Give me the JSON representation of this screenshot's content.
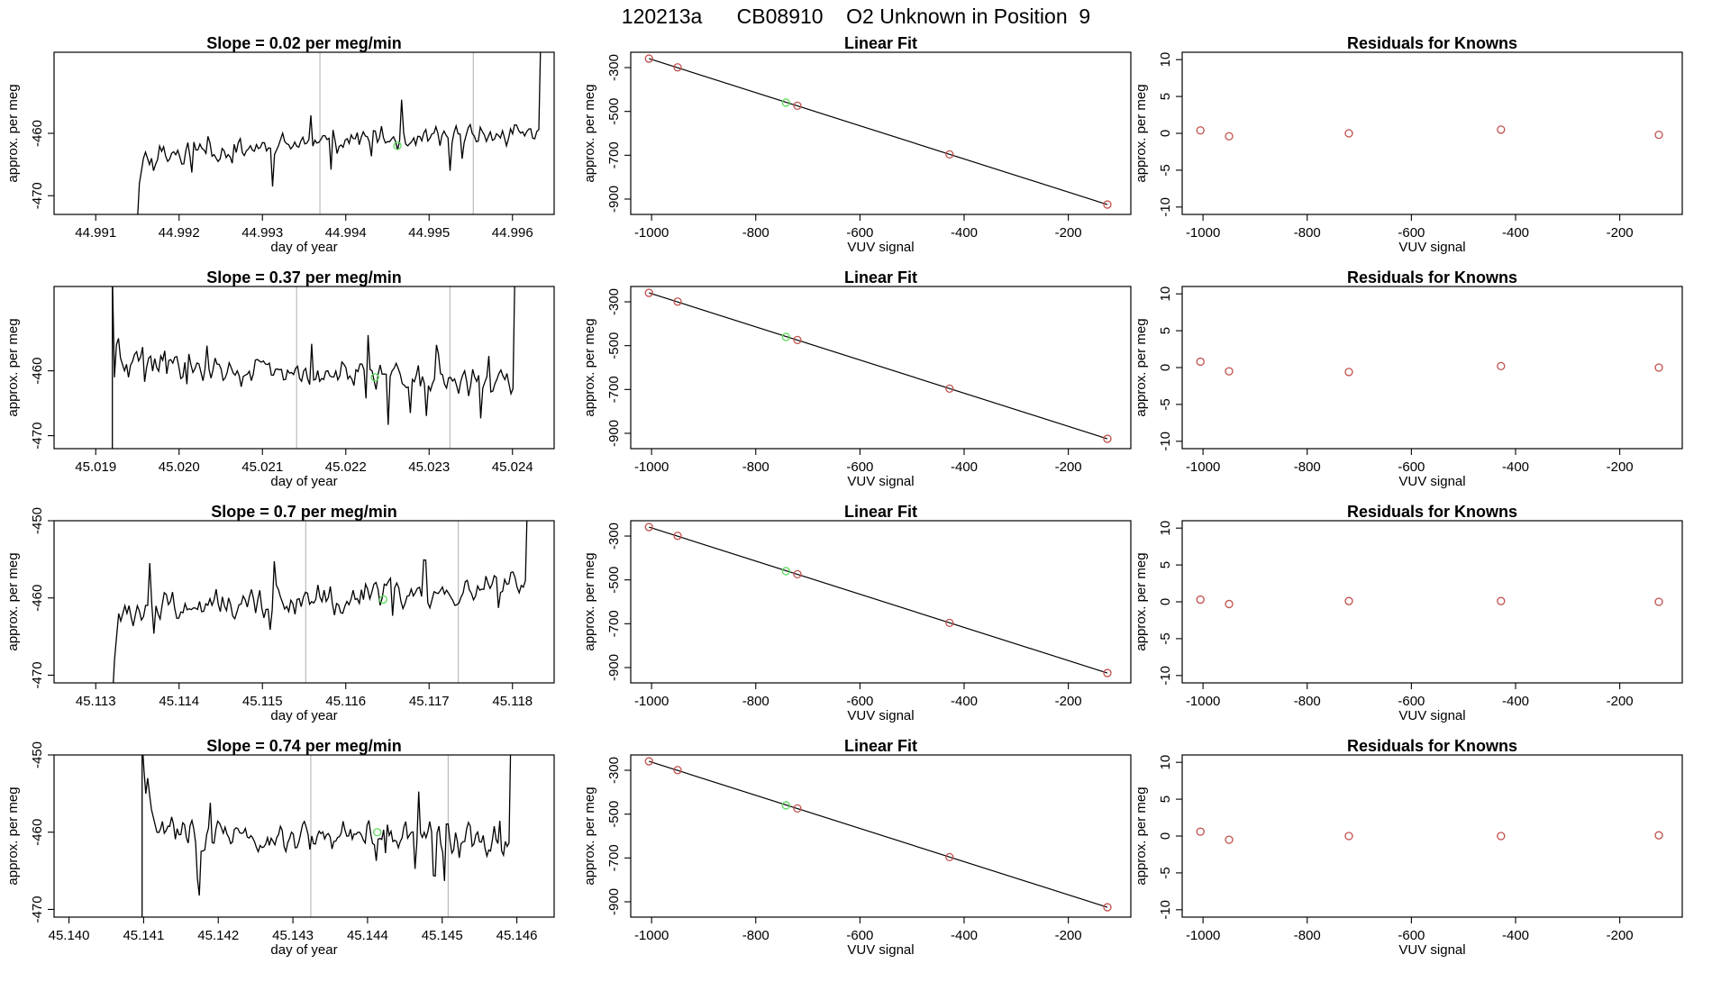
{
  "figure_title": "120213a      CB08910    O2 Unknown in Position  9",
  "colors": {
    "line": "#000000",
    "known_point": "#c0504d",
    "unknown_point": "#5cdc5c",
    "marker_line": "#bbbbbb"
  },
  "chart_data": [
    {
      "type": "line",
      "title": "Slope =  0.02  per meg/min",
      "xlabel": "day of year",
      "ylabel": "approx. per meg",
      "xlim": [
        44.9905,
        44.9965
      ],
      "ylim": [
        -473,
        -447
      ],
      "x_ticks": [
        44.991,
        44.992,
        44.993,
        44.994,
        44.995,
        44.996
      ],
      "x_tick_labels": [
        "44.991",
        "44.992",
        "44.993",
        "44.994",
        "44.995",
        "44.996"
      ],
      "y_ticks": [
        -470,
        -460
      ],
      "y_tick_labels": [
        "-470",
        "-460"
      ],
      "start": 44.9915,
      "end": 44.99634,
      "markers": [
        44.99369,
        44.99553
      ],
      "unknown_point": {
        "x": 44.99462,
        "y": -462.0
      },
      "trace": [
        -474,
        -468,
        -466,
        -464,
        -463,
        -464,
        -465,
        -464,
        -466,
        -465
      ],
      "noise_seed": 11,
      "noise_amp": 2.3,
      "trend": [
        -464,
        -463,
        -462.5,
        -462,
        -461.5,
        -461,
        -461,
        -460.5,
        -460.5,
        -460
      ]
    },
    {
      "type": "scatter",
      "title": "Linear Fit",
      "xlabel": "VUV signal",
      "ylabel": "approx. per meg",
      "xlim": [
        -1040,
        -80
      ],
      "ylim": [
        -970,
        -230
      ],
      "x_ticks": [
        -1000,
        -800,
        -600,
        -400,
        -200
      ],
      "x_tick_labels": [
        "-1000",
        "-800",
        "-600",
        "-400",
        "-200"
      ],
      "y_ticks": [
        -900,
        -700,
        -500,
        -300
      ],
      "y_tick_labels": [
        "-900",
        "-700",
        "-500",
        "-300"
      ],
      "fit_line": {
        "x": [
          -1005,
          -125
        ],
        "y": [
          -259,
          -925
        ]
      },
      "knowns": {
        "x": [
          -1005,
          -950,
          -720,
          -428,
          -125
        ],
        "y": [
          -259,
          -299,
          -474,
          -696,
          -925
        ]
      },
      "unknown": {
        "x": [
          -742
        ],
        "y": [
          -460
        ]
      }
    },
    {
      "type": "scatter",
      "title": "Residuals for Knowns",
      "xlabel": "VUV signal",
      "ylabel": "approx. per meg",
      "xlim": [
        -1040,
        -80
      ],
      "ylim": [
        -11,
        11
      ],
      "x_ticks": [
        -1000,
        -800,
        -600,
        -400,
        -200
      ],
      "x_tick_labels": [
        "-1000",
        "-800",
        "-600",
        "-400",
        "-200"
      ],
      "y_ticks": [
        -10,
        -5,
        0,
        5,
        10
      ],
      "y_tick_labels": [
        "-10",
        "-5",
        "0",
        "5",
        "10"
      ],
      "knowns": {
        "x": [
          -1005,
          -950,
          -720,
          -428,
          -125
        ],
        "y": [
          0.4,
          -0.4,
          0.0,
          0.5,
          -0.2
        ]
      }
    },
    {
      "type": "line",
      "title": "Slope =  0.37  per meg/min",
      "xlabel": "day of year",
      "ylabel": "approx. per meg",
      "xlim": [
        45.0185,
        45.0245
      ],
      "ylim": [
        -472,
        -447
      ],
      "x_ticks": [
        45.019,
        45.02,
        45.021,
        45.022,
        45.023,
        45.024
      ],
      "x_tick_labels": [
        "45.019",
        "45.020",
        "45.021",
        "45.022",
        "45.023",
        "45.024"
      ],
      "y_ticks": [
        -470,
        -460
      ],
      "y_tick_labels": [
        "-470",
        "-460"
      ],
      "start": 45.0192,
      "end": 45.02403,
      "markers": [
        45.02141,
        45.02325
      ],
      "unknown_point": {
        "x": 45.02235,
        "y": -461.0
      },
      "trace": [
        -445,
        -461,
        -456,
        -455,
        -458,
        -459,
        -460,
        -459,
        -461
      ],
      "noise_seed": 29,
      "noise_amp": 2.6,
      "trend": [
        -458,
        -459,
        -460,
        -460,
        -460.5,
        -460.5,
        -461,
        -461,
        -461.5,
        -462
      ]
    },
    {
      "type": "scatter",
      "title": "Linear Fit",
      "xlabel": "VUV signal",
      "ylabel": "approx. per meg",
      "xlim": [
        -1040,
        -80
      ],
      "ylim": [
        -970,
        -230
      ],
      "x_ticks": [
        -1000,
        -800,
        -600,
        -400,
        -200
      ],
      "x_tick_labels": [
        "-1000",
        "-800",
        "-600",
        "-400",
        "-200"
      ],
      "y_ticks": [
        -900,
        -700,
        -500,
        -300
      ],
      "y_tick_labels": [
        "-900",
        "-700",
        "-500",
        "-300"
      ],
      "fit_line": {
        "x": [
          -1005,
          -125
        ],
        "y": [
          -259,
          -925
        ]
      },
      "knowns": {
        "x": [
          -1005,
          -950,
          -720,
          -428,
          -125
        ],
        "y": [
          -259,
          -299,
          -474,
          -696,
          -925
        ]
      },
      "unknown": {
        "x": [
          -742
        ],
        "y": [
          -460
        ]
      }
    },
    {
      "type": "scatter",
      "title": "Residuals for Knowns",
      "xlabel": "VUV signal",
      "ylabel": "approx. per meg",
      "xlim": [
        -1040,
        -80
      ],
      "ylim": [
        -11,
        11
      ],
      "x_ticks": [
        -1000,
        -800,
        -600,
        -400,
        -200
      ],
      "x_tick_labels": [
        "-1000",
        "-800",
        "-600",
        "-400",
        "-200"
      ],
      "y_ticks": [
        -10,
        -5,
        0,
        5,
        10
      ],
      "y_tick_labels": [
        "-10",
        "-5",
        "0",
        "5",
        "10"
      ],
      "knowns": {
        "x": [
          -1005,
          -950,
          -720,
          -428,
          -125
        ],
        "y": [
          0.8,
          -0.5,
          -0.6,
          0.2,
          0.0
        ]
      }
    },
    {
      "type": "line",
      "title": "Slope =  0.7  per meg/min",
      "xlabel": "day of year",
      "ylabel": "approx. per meg",
      "xlim": [
        45.1125,
        45.1185
      ],
      "ylim": [
        -471,
        -450
      ],
      "x_ticks": [
        45.113,
        45.114,
        45.115,
        45.116,
        45.117,
        45.118
      ],
      "x_tick_labels": [
        "45.113",
        "45.114",
        "45.115",
        "45.116",
        "45.117",
        "45.118"
      ],
      "y_ticks": [
        -470,
        -460,
        -450
      ],
      "y_tick_labels": [
        "-470",
        "-460",
        "-450"
      ],
      "start": 45.1132,
      "end": 45.11818,
      "markers": [
        45.11552,
        45.11735
      ],
      "unknown_point": {
        "x": 45.11645,
        "y": -460.2
      },
      "trace": [
        -473,
        -468,
        -465,
        -462,
        -463,
        -462,
        -461,
        -462,
        -461
      ],
      "noise_seed": 47,
      "noise_amp": 2.4,
      "trend": [
        -462,
        -461.5,
        -461,
        -460.5,
        -460.5,
        -460,
        -459.5,
        -459,
        -458.5,
        -458
      ]
    },
    {
      "type": "scatter",
      "title": "Linear Fit",
      "xlabel": "VUV signal",
      "ylabel": "approx. per meg",
      "xlim": [
        -1040,
        -80
      ],
      "ylim": [
        -970,
        -230
      ],
      "x_ticks": [
        -1000,
        -800,
        -600,
        -400,
        -200
      ],
      "x_tick_labels": [
        "-1000",
        "-800",
        "-600",
        "-400",
        "-200"
      ],
      "y_ticks": [
        -900,
        -700,
        -500,
        -300
      ],
      "y_tick_labels": [
        "-900",
        "-700",
        "-500",
        "-300"
      ],
      "fit_line": {
        "x": [
          -1005,
          -125
        ],
        "y": [
          -259,
          -925
        ]
      },
      "knowns": {
        "x": [
          -1005,
          -950,
          -720,
          -428,
          -125
        ],
        "y": [
          -259,
          -299,
          -474,
          -696,
          -925
        ]
      },
      "unknown": {
        "x": [
          -742
        ],
        "y": [
          -460
        ]
      }
    },
    {
      "type": "scatter",
      "title": "Residuals for Knowns",
      "xlabel": "VUV signal",
      "ylabel": "approx. per meg",
      "xlim": [
        -1040,
        -80
      ],
      "ylim": [
        -11,
        11
      ],
      "x_ticks": [
        -1000,
        -800,
        -600,
        -400,
        -200
      ],
      "x_tick_labels": [
        "-1000",
        "-800",
        "-600",
        "-400",
        "-200"
      ],
      "y_ticks": [
        -10,
        -5,
        0,
        5,
        10
      ],
      "y_tick_labels": [
        "-10",
        "-5",
        "0",
        "5",
        "10"
      ],
      "knowns": {
        "x": [
          -1005,
          -950,
          -720,
          -428,
          -125
        ],
        "y": [
          0.3,
          -0.3,
          0.1,
          0.1,
          0.0
        ]
      }
    },
    {
      "type": "line",
      "title": "Slope =  0.74  per meg/min",
      "xlabel": "day of year",
      "ylabel": "approx. per meg",
      "xlim": [
        45.1398,
        45.1465
      ],
      "ylim": [
        -471,
        -450
      ],
      "x_ticks": [
        45.14,
        45.141,
        45.142,
        45.143,
        45.144,
        45.145,
        45.146
      ],
      "x_tick_labels": [
        "45.140",
        "45.141",
        "45.142",
        "45.143",
        "45.144",
        "45.145",
        "45.146"
      ],
      "y_ticks": [
        -470,
        -460,
        -450
      ],
      "y_tick_labels": [
        "-470",
        "-460",
        "-450"
      ],
      "start": 45.14098,
      "end": 45.14592,
      "markers": [
        45.14324,
        45.14508
      ],
      "unknown_point": {
        "x": 45.14413,
        "y": -460.0
      },
      "trace": [
        -448,
        -452,
        -455,
        -453,
        -455,
        -457,
        -458,
        -459,
        -460
      ],
      "noise_seed": 83,
      "noise_amp": 2.5,
      "trend": [
        -459,
        -460,
        -460.5,
        -461,
        -460.5,
        -460,
        -460,
        -460.5,
        -461,
        -462
      ]
    },
    {
      "type": "scatter",
      "title": "Linear Fit",
      "xlabel": "VUV signal",
      "ylabel": "approx. per meg",
      "xlim": [
        -1040,
        -80
      ],
      "ylim": [
        -970,
        -230
      ],
      "x_ticks": [
        -1000,
        -800,
        -600,
        -400,
        -200
      ],
      "x_tick_labels": [
        "-1000",
        "-800",
        "-600",
        "-400",
        "-200"
      ],
      "y_ticks": [
        -900,
        -700,
        -500,
        -300
      ],
      "y_tick_labels": [
        "-900",
        "-700",
        "-500",
        "-300"
      ],
      "fit_line": {
        "x": [
          -1005,
          -125
        ],
        "y": [
          -259,
          -925
        ]
      },
      "knowns": {
        "x": [
          -1005,
          -950,
          -720,
          -428,
          -125
        ],
        "y": [
          -259,
          -299,
          -474,
          -696,
          -925
        ]
      },
      "unknown": {
        "x": [
          -742
        ],
        "y": [
          -460
        ]
      }
    },
    {
      "type": "scatter",
      "title": "Residuals for Knowns",
      "xlabel": "VUV signal",
      "ylabel": "approx. per meg",
      "xlim": [
        -1040,
        -80
      ],
      "ylim": [
        -11,
        11
      ],
      "x_ticks": [
        -1000,
        -800,
        -600,
        -400,
        -200
      ],
      "x_tick_labels": [
        "-1000",
        "-800",
        "-600",
        "-400",
        "-200"
      ],
      "y_ticks": [
        -10,
        -5,
        0,
        5,
        10
      ],
      "y_tick_labels": [
        "-10",
        "-5",
        "0",
        "5",
        "10"
      ],
      "knowns": {
        "x": [
          -1005,
          -950,
          -720,
          -428,
          -125
        ],
        "y": [
          0.6,
          -0.5,
          0.0,
          0.0,
          0.1
        ]
      }
    }
  ]
}
